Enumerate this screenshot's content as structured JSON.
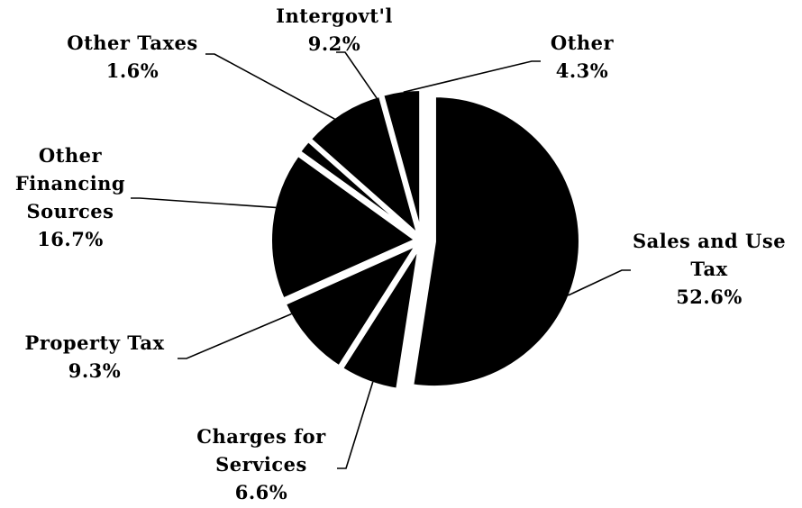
{
  "chart_data": {
    "type": "pie",
    "title": "",
    "exploded": true,
    "slice_color": "#000000",
    "background": "#ffffff",
    "slices": [
      {
        "key": "sales",
        "label_lines": [
          "Sales and Use",
          "Tax"
        ],
        "pct_text": "52.6%",
        "value": 52.6
      },
      {
        "key": "charges",
        "label_lines": [
          "Charges for",
          "Services"
        ],
        "pct_text": "6.6%",
        "value": 6.6
      },
      {
        "key": "property",
        "label_lines": [
          "Property Tax"
        ],
        "pct_text": "9.3%",
        "value": 9.3
      },
      {
        "key": "financing",
        "label_lines": [
          "Other",
          "Financing",
          "Sources"
        ],
        "pct_text": "16.7%",
        "value": 16.7
      },
      {
        "key": "othertaxes",
        "label_lines": [
          "Other Taxes"
        ],
        "pct_text": "1.6%",
        "value": 1.6
      },
      {
        "key": "intergovt",
        "label_lines": [
          "Intergovt'l"
        ],
        "pct_text": "9.2%",
        "value": 9.2
      },
      {
        "key": "other",
        "label_lines": [
          "Other"
        ],
        "pct_text": "4.3%",
        "value": 4.3
      }
    ]
  }
}
